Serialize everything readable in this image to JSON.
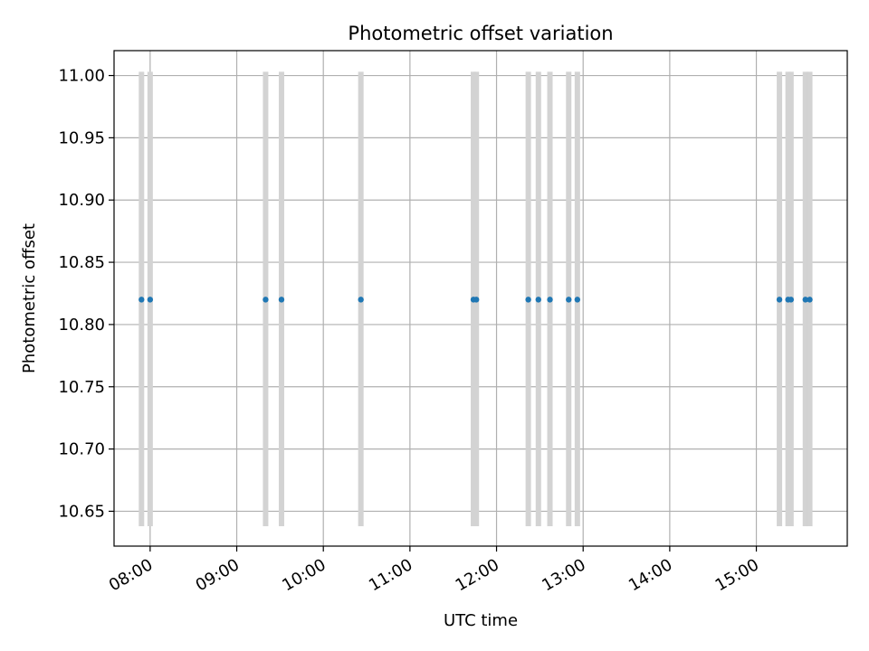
{
  "chart_data": {
    "type": "scatter",
    "title": "Photometric offset variation",
    "xlabel": "UTC time",
    "ylabel": "Photometric offset",
    "x_ticks": [
      "08:00",
      "09:00",
      "10:00",
      "11:00",
      "12:00",
      "13:00",
      "14:00",
      "15:00"
    ],
    "y_ticks": [
      "10.65",
      "10.70",
      "10.75",
      "10.80",
      "10.85",
      "10.90",
      "10.95",
      "11.00"
    ],
    "xlim": [
      "07:35",
      "16:03"
    ],
    "ylim": [
      10.622,
      11.02
    ],
    "grid": true,
    "points": [
      {
        "x": "07:54",
        "y": 10.82
      },
      {
        "x": "08:00",
        "y": 10.82
      },
      {
        "x": "09:20",
        "y": 10.82
      },
      {
        "x": "09:31",
        "y": 10.82
      },
      {
        "x": "10:26",
        "y": 10.82
      },
      {
        "x": "11:44",
        "y": 10.82
      },
      {
        "x": "11:46",
        "y": 10.82
      },
      {
        "x": "12:22",
        "y": 10.82
      },
      {
        "x": "12:29",
        "y": 10.82
      },
      {
        "x": "12:37",
        "y": 10.82
      },
      {
        "x": "12:50",
        "y": 10.82
      },
      {
        "x": "12:56",
        "y": 10.82
      },
      {
        "x": "15:16",
        "y": 10.82
      },
      {
        "x": "15:22",
        "y": 10.82
      },
      {
        "x": "15:24",
        "y": 10.82
      },
      {
        "x": "15:34",
        "y": 10.82
      },
      {
        "x": "15:37",
        "y": 10.82
      }
    ],
    "vertical_bands": {
      "ymin": 10.638,
      "ymax": 11.003,
      "color": "#d3d3d3"
    },
    "colors": {
      "points": "#1f77b4",
      "grid": "#b0b0b0",
      "bands": "#d3d3d3",
      "axes": "#000000"
    }
  }
}
